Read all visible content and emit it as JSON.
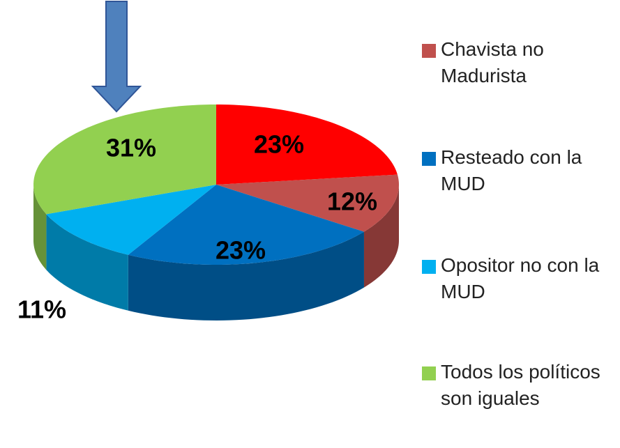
{
  "chart_data": {
    "type": "pie",
    "categories": [
      null,
      "Chavista no Madurista",
      "Resteado con la MUD",
      "Opositor no con la MUD",
      "Todos los políticos son iguales"
    ],
    "values": [
      23,
      12,
      23,
      11,
      31
    ],
    "value_labels": [
      "23%",
      "12%",
      "23%",
      "11%",
      "31%"
    ],
    "colors": [
      "#ff0000",
      "#c0504d",
      "#0070c0",
      "#00b0f0",
      "#92d050"
    ],
    "legend": "right"
  }
}
